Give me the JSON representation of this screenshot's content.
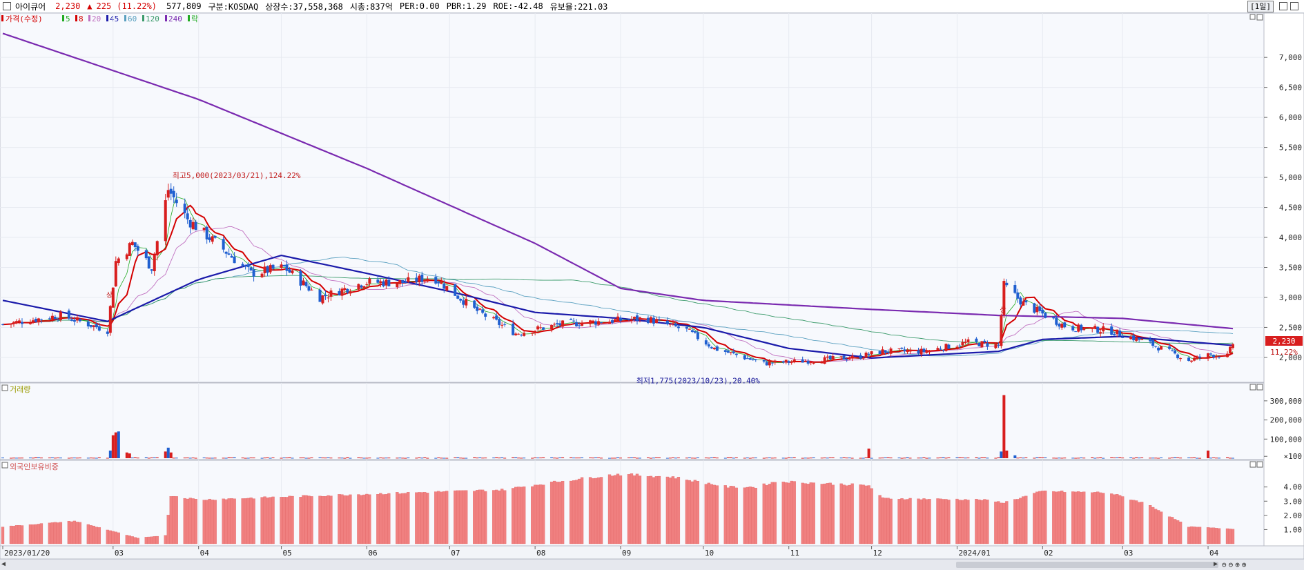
{
  "header": {
    "name": "아이큐어",
    "price": "2,230",
    "arrow": "▲",
    "change": "225",
    "change_pct": "(11.22%)",
    "volume": "577,809",
    "market": "구분:KOSDAQ",
    "shares": "상장수:37,558,368",
    "mktcap": "시총:837억",
    "per": "PER:0.00",
    "pbr": "PBR:1.29",
    "roe": "ROE:-42.48",
    "reserve": "유보율:221.03",
    "period": "[1일]"
  },
  "legend": {
    "price": "가격(수정)",
    "ma": [
      "5",
      "8",
      "20",
      "45",
      "60",
      "120",
      "240"
    ],
    "extra": "락",
    "ma_colors": [
      "#22aa22",
      "#d40000",
      "#c070c0",
      "#1a1aaa",
      "#5aa0c0",
      "#3a9a6a",
      "#7a2ab0"
    ]
  },
  "annotations": {
    "high": "최고5,000(2023/03/21),124.22%",
    "low": "최저1,775(2023/10/23),20.40%",
    "mark": "상",
    "price_tag": "2,230",
    "pct_tag": "11.22%"
  },
  "colors": {
    "up": "#d81e1e",
    "down": "#1f5fd0",
    "foreign": "#f08080"
  },
  "chart_data": [
    {
      "type": "candlestick",
      "title": "",
      "ylim": [
        1700,
        7600
      ],
      "y_ticks": [
        "7,000",
        "6,500",
        "6,000",
        "5,500",
        "5,000",
        "4,500",
        "4,000",
        "3,500",
        "3,000",
        "2,500",
        "2,000"
      ],
      "x_ticks": [
        "2023/01/20",
        "03",
        "04",
        "05",
        "06",
        "07",
        "08",
        "09",
        "10",
        "11",
        "12",
        "2024/01",
        "02",
        "03",
        "04"
      ],
      "close_keypoints": [
        [
          "2023-01-20",
          2550
        ],
        [
          "2023-02-10",
          2700
        ],
        [
          "2023-02-27",
          2450
        ],
        [
          "2023-03-02",
          3600
        ],
        [
          "2023-03-08",
          3900
        ],
        [
          "2023-03-15",
          3500
        ],
        [
          "2023-03-21",
          4800
        ],
        [
          "2023-03-28",
          4300
        ],
        [
          "2023-04-10",
          3800
        ],
        [
          "2023-04-20",
          3400
        ],
        [
          "2023-05-02",
          3500
        ],
        [
          "2023-05-15",
          3000
        ],
        [
          "2023-05-31",
          3250
        ],
        [
          "2023-06-15",
          3250
        ],
        [
          "2023-06-25",
          3350
        ],
        [
          "2023-07-10",
          2800
        ],
        [
          "2023-07-25",
          2400
        ],
        [
          "2023-08-10",
          2550
        ],
        [
          "2023-08-25",
          2600
        ],
        [
          "2023-09-10",
          2650
        ],
        [
          "2023-09-25",
          2450
        ],
        [
          "2023-10-05",
          2150
        ],
        [
          "2023-10-23",
          1900
        ],
        [
          "2023-11-10",
          1950
        ],
        [
          "2023-11-25",
          2000
        ],
        [
          "2023-12-05",
          2100
        ],
        [
          "2023-12-20",
          2100
        ],
        [
          "2024-01-05",
          2250
        ],
        [
          "2024-01-16",
          2200
        ],
        [
          "2024-01-18",
          3200
        ],
        [
          "2024-01-25",
          2900
        ],
        [
          "2024-02-10",
          2500
        ],
        [
          "2024-02-25",
          2450
        ],
        [
          "2024-03-10",
          2250
        ],
        [
          "2024-03-25",
          1950
        ],
        [
          "2024-04-02",
          2050
        ],
        [
          "2024-04-08",
          2020
        ],
        [
          "2024-04-10",
          2230
        ]
      ],
      "ma240_keypoints": [
        [
          "2023-01-20",
          7400
        ],
        [
          "2023-04-01",
          6300
        ],
        [
          "2023-06-01",
          5150
        ],
        [
          "2023-08-01",
          3900
        ],
        [
          "2023-09-01",
          3150
        ],
        [
          "2023-10-01",
          2950
        ],
        [
          "2023-12-01",
          2800
        ],
        [
          "2024-01-16",
          2700
        ],
        [
          "2024-03-01",
          2650
        ],
        [
          "2024-04-10",
          2480
        ]
      ],
      "ma45_keypoints": [
        [
          "2023-01-20",
          2950
        ],
        [
          "2023-02-27",
          2600
        ],
        [
          "2023-04-01",
          3300
        ],
        [
          "2023-05-01",
          3700
        ],
        [
          "2023-06-01",
          3400
        ],
        [
          "2023-07-01",
          3100
        ],
        [
          "2023-08-01",
          2750
        ],
        [
          "2023-09-01",
          2650
        ],
        [
          "2023-10-01",
          2500
        ],
        [
          "2023-11-01",
          2150
        ],
        [
          "2023-12-01",
          1990
        ],
        [
          "2024-01-16",
          2100
        ],
        [
          "2024-02-01",
          2300
        ],
        [
          "2024-03-01",
          2350
        ],
        [
          "2024-04-10",
          2200
        ]
      ]
    },
    {
      "type": "bar",
      "title": "거래량",
      "ylim": [
        0,
        350000
      ],
      "y_ticks": [
        "300,000",
        "200,000",
        "100,000",
        "×100"
      ],
      "spikes": [
        [
          "2023-02-28",
          40000
        ],
        [
          "2023-03-01",
          120000
        ],
        [
          "2023-03-02",
          135000
        ],
        [
          "2023-03-03",
          140000
        ],
        [
          "2023-03-06",
          30000
        ],
        [
          "2023-03-07",
          25000
        ],
        [
          "2023-03-20",
          35000
        ],
        [
          "2023-03-21",
          55000
        ],
        [
          "2023-03-22",
          30000
        ],
        [
          "2023-05-20",
          20000
        ],
        [
          "2023-11-30",
          50000
        ],
        [
          "2024-01-17",
          35000
        ],
        [
          "2024-01-18",
          330000
        ],
        [
          "2024-01-19",
          40000
        ],
        [
          "2024-01-22",
          15000
        ],
        [
          "2024-04-01",
          40000
        ]
      ],
      "baseline": 3000
    },
    {
      "type": "bar",
      "title": "외국인보유비중",
      "ylim": [
        0,
        5.2
      ],
      "y_ticks": [
        "4.00",
        "3.00",
        "2.00",
        "1.00"
      ],
      "keypoints": [
        [
          "2023-01-20",
          1.2
        ],
        [
          "2023-02-15",
          1.6
        ],
        [
          "2023-02-22",
          1.25
        ],
        [
          "2023-03-10",
          0.4
        ],
        [
          "2023-03-20",
          0.6
        ],
        [
          "2023-03-22",
          3.4
        ],
        [
          "2023-04-01",
          3.1
        ],
        [
          "2023-05-01",
          3.3
        ],
        [
          "2023-06-01",
          3.5
        ],
        [
          "2023-07-20",
          3.8
        ],
        [
          "2023-08-10",
          4.4
        ],
        [
          "2023-08-31",
          4.9
        ],
        [
          "2023-09-20",
          4.7
        ],
        [
          "2023-10-10",
          4.0
        ],
        [
          "2023-10-20",
          4.0
        ],
        [
          "2023-10-28",
          4.4
        ],
        [
          "2023-11-30",
          4.1
        ],
        [
          "2023-12-05",
          3.2
        ],
        [
          "2024-01-10",
          3.1
        ],
        [
          "2024-01-18",
          2.9
        ],
        [
          "2024-02-01",
          3.7
        ],
        [
          "2024-02-25",
          3.6
        ],
        [
          "2024-03-10",
          2.8
        ],
        [
          "2024-03-25",
          1.2
        ],
        [
          "2024-04-10",
          1.05
        ]
      ]
    }
  ]
}
